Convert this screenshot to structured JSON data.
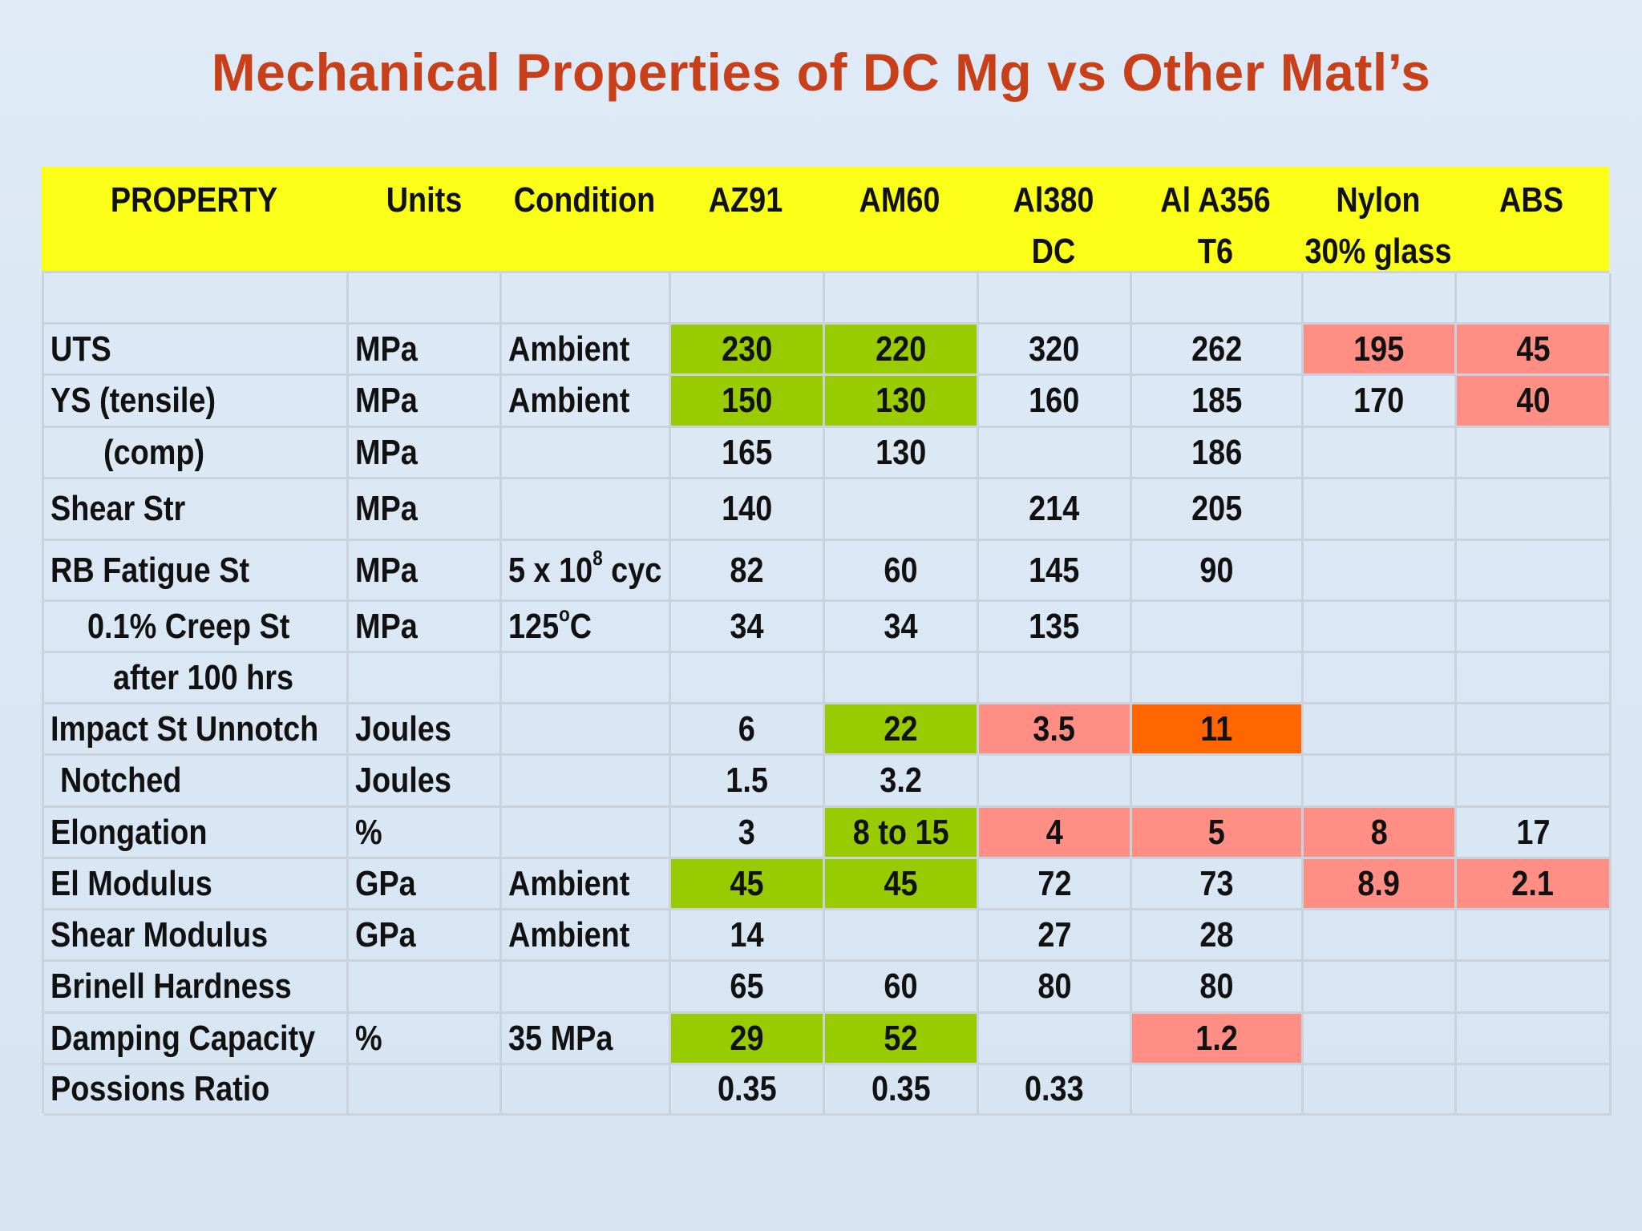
{
  "title": "Mechanical Properties of DC Mg vs Other Matl’s",
  "colors": {
    "title": "#c8401a",
    "header_bg": "#fbff17",
    "green": "#99cc00",
    "pink": "#ff8f85",
    "orange": "#ff6600"
  },
  "header": [
    [
      "PROPERTY"
    ],
    [
      "Units"
    ],
    [
      "Condition"
    ],
    [
      "AZ91"
    ],
    [
      "AM60"
    ],
    [
      "Al380",
      "DC"
    ],
    [
      "Al A356",
      "T6"
    ],
    [
      "Nylon",
      "30% glass"
    ],
    [
      "ABS"
    ]
  ],
  "rows": [
    {
      "property": "",
      "units": "",
      "condition": "",
      "values": [
        "",
        "",
        "",
        "",
        "",
        ""
      ],
      "hl": [
        "",
        "",
        "",
        "",
        "",
        ""
      ]
    },
    {
      "property": "UTS",
      "units": "MPa",
      "condition": "Ambient",
      "values": [
        "230",
        "220",
        "320",
        "262",
        "195",
        "45"
      ],
      "hl": [
        "green",
        "green",
        "",
        "",
        "pink",
        "pink"
      ]
    },
    {
      "property": "YS (tensile)",
      "units": "MPa",
      "condition": "Ambient",
      "values": [
        "150",
        "130",
        "160",
        "185",
        "170",
        "40"
      ],
      "hl": [
        "green",
        "green",
        "",
        "",
        "",
        "pink"
      ]
    },
    {
      "property": "(comp)",
      "indent": 1,
      "units": "MPa",
      "condition": "",
      "values": [
        "165",
        "130",
        "",
        "186",
        "",
        ""
      ],
      "hl": [
        "",
        "",
        "",
        "",
        "",
        ""
      ]
    },
    {
      "property": "Shear Str",
      "units": "MPa",
      "condition": "",
      "values": [
        "140",
        "",
        "214",
        "205",
        "",
        ""
      ],
      "hl": [
        "",
        "",
        "",
        "",
        "",
        ""
      ]
    },
    {
      "property": "RB Fatigue St",
      "units": "MPa",
      "condition_base": "5 x 10",
      "condition_sup": "8",
      "condition_tail": " cyc",
      "values": [
        "82",
        "60",
        "145",
        "90",
        "",
        ""
      ],
      "hl": [
        "",
        "",
        "",
        "",
        "",
        ""
      ]
    },
    {
      "property": "0.1% Creep St",
      "indent": 2,
      "units": "MPa",
      "condition_base": "125",
      "condition_sup": "o",
      "condition_tail": "C",
      "values": [
        "34",
        "34",
        "135",
        "",
        "",
        ""
      ],
      "hl": [
        "",
        "",
        "",
        "",
        "",
        ""
      ]
    },
    {
      "property": "after 100 hrs",
      "indent": 3,
      "units": "",
      "condition": "",
      "values": [
        "",
        "",
        "",
        "",
        "",
        ""
      ],
      "hl": [
        "",
        "",
        "",
        "",
        "",
        ""
      ]
    },
    {
      "property": "Impact St Unnotch",
      "units": "Joules",
      "condition": "",
      "values": [
        "6",
        "22",
        "3.5",
        "11",
        "",
        ""
      ],
      "hl": [
        "",
        "green",
        "pink",
        "orange",
        "",
        ""
      ]
    },
    {
      "property": "Notched",
      "indent": 4,
      "units": "Joules",
      "condition": "",
      "values": [
        "1.5",
        "3.2",
        "",
        "",
        "",
        ""
      ],
      "hl": [
        "",
        "",
        "",
        "",
        "",
        ""
      ]
    },
    {
      "property": "Elongation",
      "units": "%",
      "condition": "",
      "values": [
        "3",
        "8 to 15",
        "4",
        "5",
        "8",
        "17"
      ],
      "hl": [
        "",
        "green",
        "pink",
        "pink",
        "pink",
        ""
      ]
    },
    {
      "property": "El Modulus",
      "units": "GPa",
      "condition": "Ambient",
      "values": [
        "45",
        "45",
        "72",
        "73",
        "8.9",
        "2.1"
      ],
      "hl": [
        "green",
        "green",
        "",
        "",
        "pink",
        "pink"
      ]
    },
    {
      "property": "Shear Modulus",
      "units": "GPa",
      "condition": "Ambient",
      "values": [
        "14",
        "",
        "27",
        "28",
        "",
        ""
      ],
      "hl": [
        "",
        "",
        "",
        "",
        "",
        ""
      ]
    },
    {
      "property": "Brinell Hardness",
      "units": "",
      "condition": "",
      "values": [
        "65",
        "60",
        "80",
        "80",
        "",
        ""
      ],
      "hl": [
        "",
        "",
        "",
        "",
        "",
        ""
      ]
    },
    {
      "property": "Damping Capacity",
      "units": "%",
      "condition": "35 MPa",
      "values": [
        "29",
        "52",
        "",
        "1.2",
        "",
        ""
      ],
      "hl": [
        "green",
        "green",
        "",
        "pink",
        "",
        ""
      ]
    },
    {
      "property": "Possions Ratio",
      "units": "",
      "condition": "",
      "values": [
        "0.35",
        "0.35",
        "0.33",
        "",
        "",
        ""
      ],
      "hl": [
        "",
        "",
        "",
        "",
        "",
        ""
      ]
    }
  ]
}
